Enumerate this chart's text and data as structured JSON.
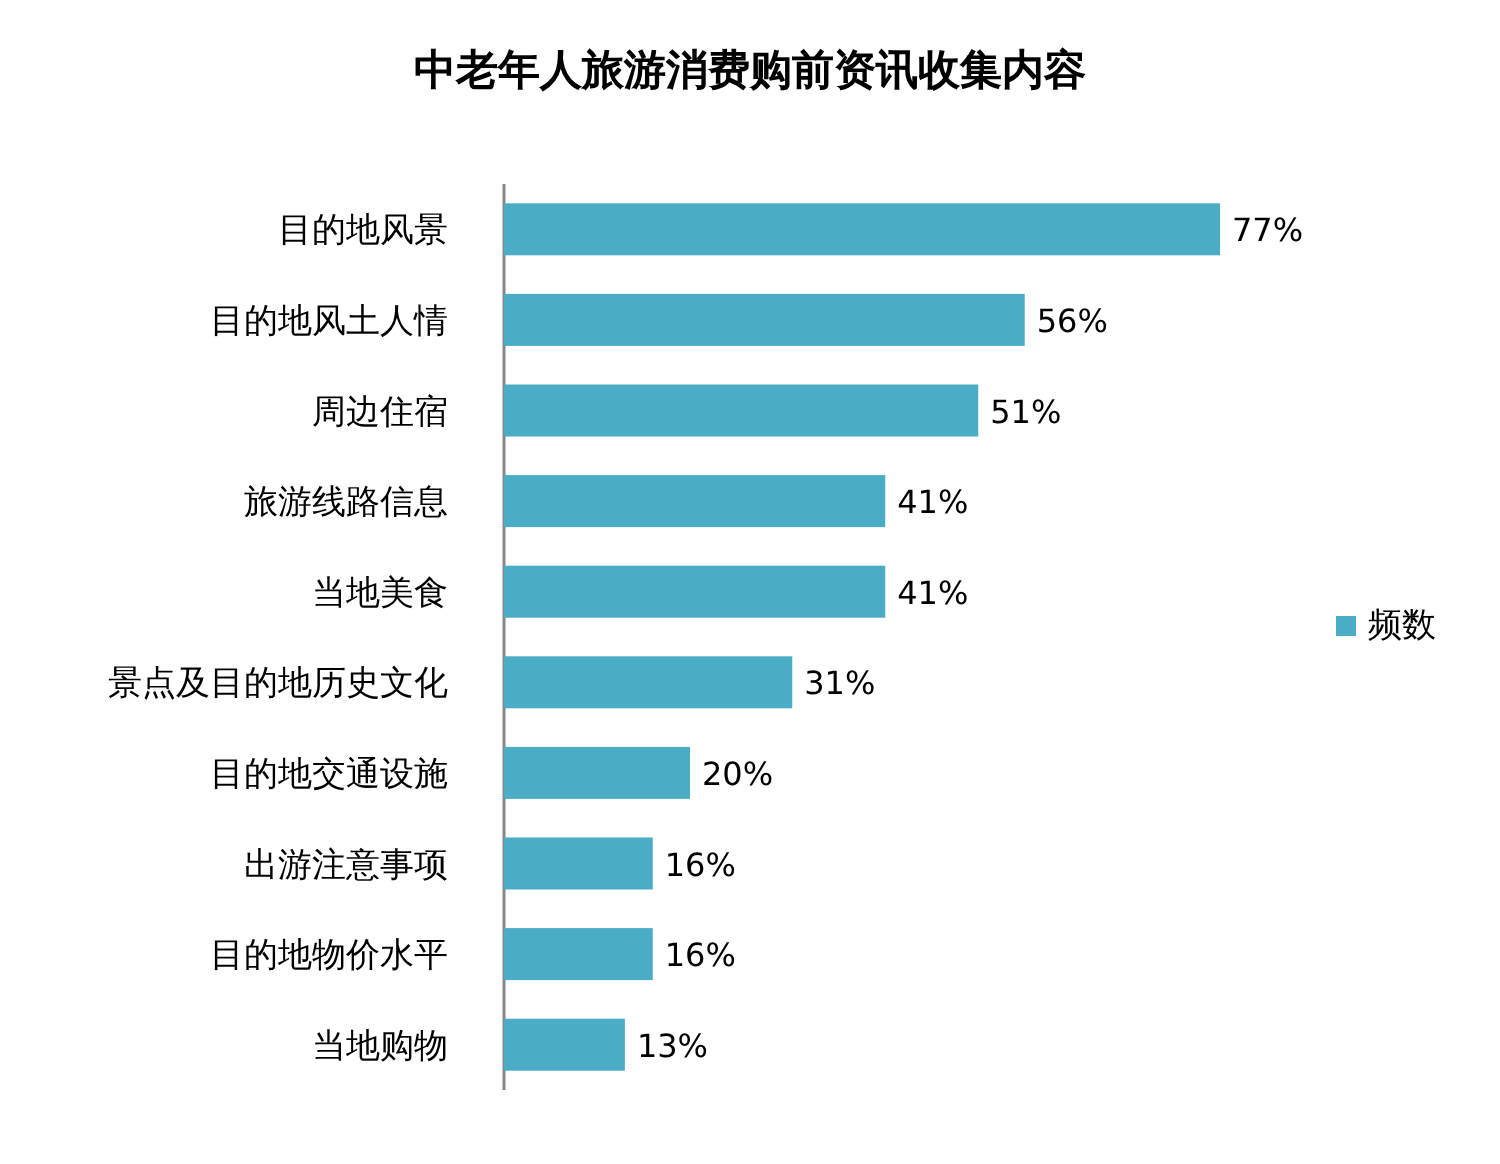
{
  "chart_data": {
    "type": "bar",
    "orientation": "horizontal",
    "title": "中老年人旅游消费购前资讯收集内容",
    "categories": [
      "目的地风景",
      "目的地风土人情",
      "周边住宿",
      "旅游线路信息",
      "当地美食",
      "景点及目的地历史文化",
      "目的地交通设施",
      "出游注意事项",
      "目的地物价水平",
      "当地购物"
    ],
    "series": [
      {
        "name": "频数",
        "color": "#4bacc6",
        "values": [
          77,
          56,
          51,
          41,
          41,
          31,
          20,
          16,
          16,
          13
        ],
        "value_labels": [
          "77%",
          "56%",
          "51%",
          "41%",
          "41%",
          "31%",
          "20%",
          "16%",
          "16%",
          "13%"
        ]
      }
    ],
    "legend": "right"
  }
}
